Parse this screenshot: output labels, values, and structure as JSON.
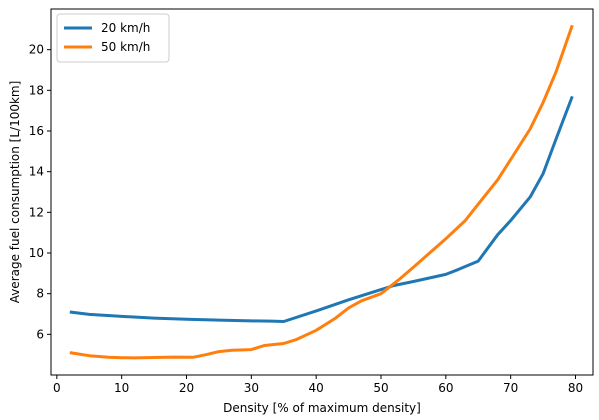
{
  "chart_data": {
    "type": "line",
    "title": "",
    "xlabel": "Density [% of maximum density]",
    "ylabel": "Average fuel consumption [L/100km]",
    "xlim": [
      -0.9,
      82.7
    ],
    "ylim": [
      4.0,
      22.0
    ],
    "xticks": [
      0,
      10,
      20,
      30,
      40,
      50,
      60,
      70,
      80
    ],
    "yticks": [
      6,
      8,
      10,
      12,
      14,
      16,
      18,
      20
    ],
    "grid": false,
    "legend_position": "top-left",
    "series": [
      {
        "name": "20 km/h",
        "color": "#1f77b4",
        "x": [
          2,
          5,
          10,
          15,
          20,
          25,
          30,
          33,
          35,
          40,
          45,
          50,
          52,
          55,
          60,
          62,
          65,
          68,
          70,
          73,
          75,
          77,
          79.5
        ],
        "y": [
          7.1,
          6.98,
          6.88,
          6.8,
          6.74,
          6.7,
          6.66,
          6.65,
          6.63,
          7.15,
          7.7,
          8.2,
          8.4,
          8.6,
          8.95,
          9.2,
          9.6,
          10.9,
          11.6,
          12.75,
          13.9,
          15.6,
          17.7
        ]
      },
      {
        "name": "50 km/h",
        "color": "#ff7f0e",
        "x": [
          2,
          5,
          8,
          10,
          12,
          15,
          18,
          21,
          23,
          25,
          27,
          30,
          32,
          35,
          37,
          40,
          43,
          45,
          47,
          50,
          53,
          55,
          60,
          63,
          65,
          68,
          70,
          73,
          75,
          77,
          79.5
        ],
        "y": [
          5.1,
          4.95,
          4.87,
          4.85,
          4.84,
          4.86,
          4.88,
          4.87,
          5.0,
          5.15,
          5.22,
          5.25,
          5.45,
          5.55,
          5.75,
          6.2,
          6.8,
          7.3,
          7.65,
          8.0,
          8.75,
          9.3,
          10.7,
          11.6,
          12.4,
          13.6,
          14.6,
          16.1,
          17.4,
          18.9,
          21.2
        ]
      }
    ]
  }
}
